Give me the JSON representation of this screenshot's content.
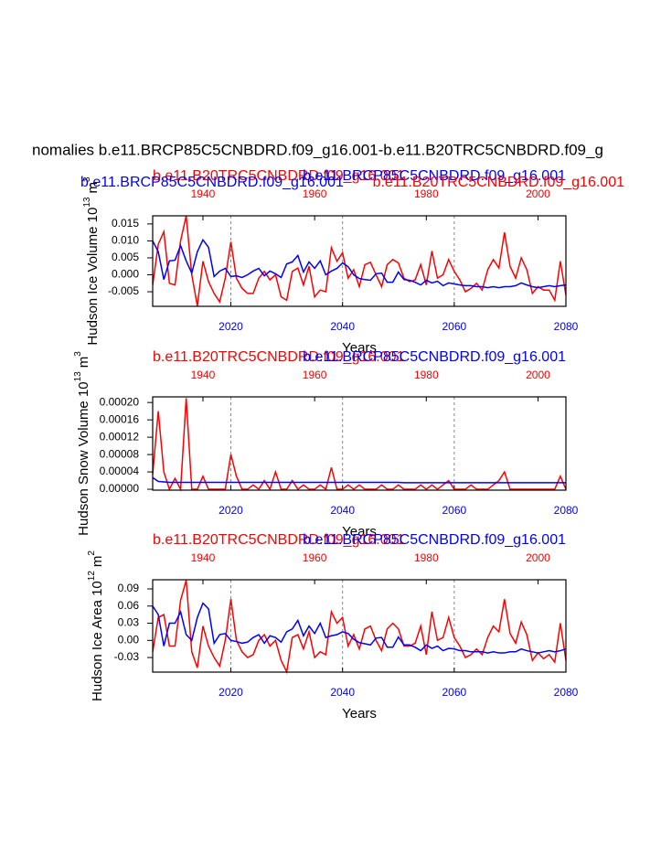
{
  "title": "nomalies b.e11.BRCP85C5CNBDRD.f09_g16.001-b.e11.B20TRC5CNBDRD.f09_g",
  "chart_data": [
    {
      "type": "line",
      "subtitles": [
        {
          "text": "b.e11.BRCP85C5CNBDRD.f09_g16.001",
          "color": "#0000ff"
        },
        {
          "text": "b.e11.B20TRC5CNBDRD.f09_g16.001",
          "color": "#ff0000"
        }
      ],
      "ylabel": {
        "text": "Hudson Ice Volume 10",
        "exp": "13",
        "unit": "m",
        "unit_exp": "3"
      },
      "xlabel": "Years",
      "xlim": [
        2006,
        2080
      ],
      "xticks": [
        2020,
        2040,
        2060,
        2080
      ],
      "xtick_color": "#0000ff",
      "x2lim": [
        1931,
        2005
      ],
      "x2ticks": [
        1940,
        1960,
        1980,
        2000
      ],
      "x2tick_color": "#ff0000",
      "grid": "x",
      "ylim": [
        -0.0093,
        0.0174
      ],
      "yticks": [
        0.015,
        {
          "value": 0.01,
          "label": "0.010"
        },
        0.005,
        {
          "value": 0,
          "label": "0.000"
        },
        -0.005
      ],
      "x": [
        2006,
        2007,
        2008,
        2009,
        2010,
        2011,
        2012,
        2013,
        2014,
        2015,
        2016,
        2017,
        2018,
        2019,
        2020,
        2021,
        2022,
        2023,
        2024,
        2025,
        2026,
        2027,
        2028,
        2029,
        2030,
        2031,
        2032,
        2033,
        2034,
        2035,
        2036,
        2037,
        2038,
        2039,
        2040,
        2041,
        2042,
        2043,
        2044,
        2045,
        2046,
        2047,
        2048,
        2049,
        2050,
        2051,
        2052,
        2053,
        2054,
        2055,
        2056,
        2057,
        2058,
        2059,
        2060,
        2061,
        2062,
        2063,
        2064,
        2065,
        2066,
        2067,
        2068,
        2069,
        2070,
        2071,
        2072,
        2073,
        2074,
        2075,
        2076,
        2077,
        2078,
        2079,
        2080
      ],
      "x2": [
        1931,
        1932,
        1933,
        1934,
        1935,
        1936,
        1937,
        1938,
        1939,
        1940,
        1941,
        1942,
        1943,
        1944,
        1945,
        1946,
        1947,
        1948,
        1949,
        1950,
        1951,
        1952,
        1953,
        1954,
        1955,
        1956,
        1957,
        1958,
        1959,
        1960,
        1961,
        1962,
        1963,
        1964,
        1965,
        1966,
        1967,
        1968,
        1969,
        1970,
        1971,
        1972,
        1973,
        1974,
        1975,
        1976,
        1977,
        1978,
        1979,
        1980,
        1981,
        1982,
        1983,
        1984,
        1985,
        1986,
        1987,
        1988,
        1989,
        1990,
        1991,
        1992,
        1993,
        1994,
        1995,
        1996,
        1997,
        1998,
        1999,
        2000,
        2001,
        2002,
        2003,
        2004,
        2005
      ],
      "series": [
        {
          "name": "b.e11.B20TRC5CNBDRD.f09_g16.001",
          "color": "#ff0000",
          "axis": "x2",
          "values": [
            -0.003,
            0.009,
            0.0127,
            -0.0025,
            -0.003,
            0.01,
            0.0174,
            0,
            -0.0092,
            0.004,
            -0.002,
            -0.0055,
            -0.008,
            -0.001,
            0.0097,
            -0.001,
            -0.004,
            -0.0055,
            -0.0055,
            -0.001,
            0.001,
            -0.0015,
            0,
            -0.0065,
            -0.0075,
            0.001,
            0.002,
            -0.003,
            0.0025,
            -0.0065,
            -0.0045,
            -0.005,
            0.008,
            0.004,
            0.0065,
            -0.001,
            0.0015,
            -0.0035,
            0.003,
            0.0037,
            0,
            -0.0035,
            0.003,
            0.0045,
            0.0035,
            -0.001,
            -0.002,
            -0.0015,
            0.003,
            -0.003,
            0.007,
            -0.001,
            0,
            0.0045,
            0.001,
            -0.0015,
            -0.005,
            -0.004,
            -0.0025,
            -0.0045,
            0.0015,
            0.0045,
            0.002,
            0.0125,
            0.0025,
            -0.001,
            0.005,
            0.0015,
            -0.0055,
            -0.0035,
            -0.0045,
            -0.0045,
            -0.0075,
            0.004,
            -0.006
          ]
        },
        {
          "name": "b.e11.BRCP85C5CNBDRD.f09_g16.001",
          "color": "#0000ff",
          "values": [
            0.01,
            0.0068,
            -0.0014,
            0.0041,
            0.0043,
            0.0086,
            0.0041,
            0.0005,
            0.0068,
            0.0103,
            0.0081,
            -0.0005,
            0.0011,
            0.0019,
            -0.0005,
            -0.0003,
            -0.0008,
            0,
            0.0011,
            0.0019,
            -0.0003,
            0.0011,
            0.0003,
            -0.0008,
            0.0032,
            0.0038,
            0.0057,
            0.0008,
            0.0038,
            0.0019,
            0.0041,
            0,
            0.0011,
            0.0019,
            0.0035,
            0.0024,
            0,
            -0.0011,
            -0.0014,
            -0.0016,
            0.0003,
            0.0005,
            -0.0022,
            -0.0022,
            0.0008,
            -0.0014,
            -0.0016,
            -0.0022,
            -0.003,
            -0.0016,
            -0.0024,
            -0.0019,
            -0.0032,
            -0.0024,
            -0.0027,
            -0.003,
            -0.0032,
            -0.0032,
            -0.0035,
            -0.0035,
            -0.0038,
            -0.0035,
            -0.0038,
            -0.0035,
            -0.0035,
            -0.0032,
            -0.0024,
            -0.003,
            -0.0035,
            -0.0038,
            -0.0035,
            -0.0032,
            -0.0035,
            -0.0032,
            -0.003
          ]
        }
      ]
    },
    {
      "type": "line",
      "ylabel": {
        "text": "Hudson Snow Volume 10",
        "exp": "13",
        "unit": "m",
        "unit_exp": "3"
      },
      "xlabel": "Years",
      "xlim": [
        2006,
        2080
      ],
      "xticks": [
        2020,
        2040,
        2060,
        2080
      ],
      "xtick_color": "#0000ff",
      "x2lim": [
        1931,
        2005
      ],
      "x2ticks": [
        1940,
        1960,
        1980,
        2000
      ],
      "x2tick_color": "#ff0000",
      "grid": "x",
      "ylim": [
        -2e-06,
        0.000213
      ],
      "yticks": [
        {
          "value": 0.0002,
          "label": "0.00020"
        },
        {
          "value": 0.00016,
          "label": "0.00016"
        },
        {
          "value": 0.00012,
          "label": "0.00012"
        },
        {
          "value": 8e-05,
          "label": "0.00008"
        },
        {
          "value": 4e-05,
          "label": "0.00004"
        },
        {
          "value": 0,
          "label": "0.00000"
        }
      ],
      "x": [
        2006,
        2007,
        2008,
        2009,
        2010,
        2011,
        2012,
        2013,
        2014,
        2015,
        2016,
        2017,
        2018,
        2019,
        2020,
        2021,
        2022,
        2023,
        2024,
        2025,
        2026,
        2027,
        2028,
        2029,
        2030,
        2031,
        2032,
        2033,
        2034,
        2035,
        2036,
        2037,
        2038,
        2039,
        2040,
        2041,
        2042,
        2043,
        2044,
        2045,
        2046,
        2047,
        2048,
        2049,
        2050,
        2051,
        2052,
        2053,
        2054,
        2055,
        2056,
        2057,
        2058,
        2059,
        2060,
        2061,
        2062,
        2063,
        2064,
        2065,
        2066,
        2067,
        2068,
        2069,
        2070,
        2071,
        2072,
        2073,
        2074,
        2075,
        2076,
        2077,
        2078,
        2079,
        2080
      ],
      "x2": [
        1931,
        1932,
        1933,
        1934,
        1935,
        1936,
        1937,
        1938,
        1939,
        1940,
        1941,
        1942,
        1943,
        1944,
        1945,
        1946,
        1947,
        1948,
        1949,
        1950,
        1951,
        1952,
        1953,
        1954,
        1955,
        1956,
        1957,
        1958,
        1959,
        1960,
        1961,
        1962,
        1963,
        1964,
        1965,
        1966,
        1967,
        1968,
        1969,
        1970,
        1971,
        1972,
        1973,
        1974,
        1975,
        1976,
        1977,
        1978,
        1979,
        1980,
        1981,
        1982,
        1983,
        1984,
        1985,
        1986,
        1987,
        1988,
        1989,
        1990,
        1991,
        1992,
        1993,
        1994,
        1995,
        1996,
        1997,
        1998,
        1999,
        2000,
        2001,
        2002,
        2003,
        2004,
        2005
      ],
      "series": [
        {
          "name": "b.e11.B20TRC5CNBDRD.f09_g16.001",
          "color": "#ff0000",
          "axis": "x2",
          "values": [
            3.5e-05,
            0.00018,
            4e-05,
            0,
            2.5e-05,
            0,
            0.00021,
            0,
            0,
            3e-05,
            0,
            0,
            0,
            0,
            8e-05,
            3e-05,
            0,
            0,
            1e-05,
            0,
            2e-05,
            0,
            4e-05,
            0,
            0,
            2e-05,
            0,
            1e-05,
            0,
            0,
            1e-05,
            0,
            5e-05,
            0,
            0,
            1e-05,
            0,
            1e-05,
            0,
            0,
            0,
            1e-05,
            0,
            0,
            1e-05,
            0,
            0,
            0,
            1e-05,
            0,
            1e-05,
            0,
            1e-05,
            2e-05,
            0,
            0,
            0,
            1e-05,
            0,
            0,
            0,
            1e-05,
            2e-05,
            4e-05,
            0,
            0,
            0,
            0,
            0,
            0,
            0,
            0,
            0,
            3e-05,
            0
          ]
        },
        {
          "name": "b.e11.BRCP85C5CNBDRD.f09_g16.001",
          "color": "#0000ff",
          "values": [
            2.7e-05,
            1.8e-05,
            1.7e-05,
            1.6e-05,
            1.6e-05,
            1.6e-05,
            1.6e-05,
            1.6e-05,
            1.6e-05,
            1.6e-05,
            1.6e-05,
            1.6e-05,
            1.6e-05,
            1.6e-05,
            1.6e-05,
            1.6e-05,
            1.6e-05,
            1.6e-05,
            1.6e-05,
            1.6e-05,
            1.6e-05,
            1.6e-05,
            1.6e-05,
            1.6e-05,
            1.6e-05,
            1.6e-05,
            1.6e-05,
            1.6e-05,
            1.6e-05,
            1.6e-05,
            1.6e-05,
            1.6e-05,
            1.6e-05,
            1.6e-05,
            1.6e-05,
            1.6e-05,
            1.6e-05,
            1.6e-05,
            1.6e-05,
            1.6e-05,
            1.6e-05,
            1.6e-05,
            1.6e-05,
            1.6e-05,
            1.6e-05,
            1.5e-05,
            1.5e-05,
            1.5e-05,
            1.5e-05,
            1.5e-05,
            1.5e-05,
            1.5e-05,
            1.5e-05,
            1.5e-05,
            1.5e-05,
            1.5e-05,
            1.5e-05,
            1.5e-05,
            1.5e-05,
            1.5e-05,
            1.5e-05,
            1.5e-05,
            1.5e-05,
            1.5e-05,
            1.5e-05,
            1.5e-05,
            1.5e-05,
            1.5e-05,
            1.5e-05,
            1.5e-05,
            1.5e-05,
            1.5e-05,
            1.5e-05,
            1.5e-05,
            1.5e-05
          ]
        }
      ]
    },
    {
      "type": "line",
      "ylabel": {
        "text": "Hudson Ice Area 10",
        "exp": "12",
        "unit": "m",
        "unit_exp": "2"
      },
      "xlabel": "Years",
      "xlim": [
        2006,
        2080
      ],
      "xticks": [
        2020,
        2040,
        2060,
        2080
      ],
      "xtick_color": "#0000ff",
      "x2lim": [
        1931,
        2005
      ],
      "x2ticks": [
        1940,
        1960,
        1980,
        2000
      ],
      "x2tick_color": "#ff0000",
      "grid": "x",
      "ylim": [
        -0.0555,
        0.106
      ],
      "yticks": [
        0.09,
        0.06,
        0.03,
        {
          "value": 0,
          "label": "0.00"
        },
        -0.03
      ],
      "x": [
        2006,
        2007,
        2008,
        2009,
        2010,
        2011,
        2012,
        2013,
        2014,
        2015,
        2016,
        2017,
        2018,
        2019,
        2020,
        2021,
        2022,
        2023,
        2024,
        2025,
        2026,
        2027,
        2028,
        2029,
        2030,
        2031,
        2032,
        2033,
        2034,
        2035,
        2036,
        2037,
        2038,
        2039,
        2040,
        2041,
        2042,
        2043,
        2044,
        2045,
        2046,
        2047,
        2048,
        2049,
        2050,
        2051,
        2052,
        2053,
        2054,
        2055,
        2056,
        2057,
        2058,
        2059,
        2060,
        2061,
        2062,
        2063,
        2064,
        2065,
        2066,
        2067,
        2068,
        2069,
        2070,
        2071,
        2072,
        2073,
        2074,
        2075,
        2076,
        2077,
        2078,
        2079,
        2080
      ],
      "x2": [
        1931,
        1932,
        1933,
        1934,
        1935,
        1936,
        1937,
        1938,
        1939,
        1940,
        1941,
        1942,
        1943,
        1944,
        1945,
        1946,
        1947,
        1948,
        1949,
        1950,
        1951,
        1952,
        1953,
        1954,
        1955,
        1956,
        1957,
        1958,
        1959,
        1960,
        1961,
        1962,
        1963,
        1964,
        1965,
        1966,
        1967,
        1968,
        1969,
        1970,
        1971,
        1972,
        1973,
        1974,
        1975,
        1976,
        1977,
        1978,
        1979,
        1980,
        1981,
        1982,
        1983,
        1984,
        1985,
        1986,
        1987,
        1988,
        1989,
        1990,
        1991,
        1992,
        1993,
        1994,
        1995,
        1996,
        1997,
        1998,
        1999,
        2000,
        2001,
        2002,
        2003,
        2004,
        2005
      ],
      "series": [
        {
          "name": "b.e11.B20TRC5CNBDRD.f09_g16.001",
          "color": "#ff0000",
          "axis": "x2",
          "values": [
            -0.02,
            0.04,
            0.045,
            -0.01,
            -0.01,
            0.07,
            0.105,
            -0.02,
            -0.048,
            0.025,
            -0.01,
            -0.03,
            -0.045,
            0,
            0.072,
            0,
            -0.02,
            -0.03,
            -0.025,
            0,
            0.01,
            -0.01,
            0,
            -0.035,
            -0.055,
            0.005,
            0.01,
            -0.015,
            0.015,
            -0.03,
            -0.02,
            -0.025,
            0.05,
            0.03,
            0.04,
            -0.01,
            0.01,
            -0.015,
            0.02,
            0.025,
            0,
            -0.018,
            0.02,
            0.03,
            0.02,
            -0.01,
            -0.01,
            -0.005,
            0.025,
            -0.025,
            0.05,
            0,
            0.005,
            0.04,
            0.005,
            -0.01,
            -0.03,
            -0.025,
            -0.015,
            -0.025,
            0.005,
            0.025,
            0.015,
            0.072,
            0.012,
            -0.005,
            0.032,
            0.01,
            -0.035,
            -0.022,
            -0.032,
            -0.025,
            -0.038,
            0.03,
            -0.035
          ]
        },
        {
          "name": "b.e11.BRCP85C5CNBDRD.f09_g16.001",
          "color": "#0000ff",
          "values": [
            0.06,
            0.045,
            -0.01,
            0.03,
            0.03,
            0.05,
            0.01,
            0,
            0.04,
            0.065,
            0.055,
            -0.005,
            0.01,
            0.012,
            0,
            -0.002,
            -0.005,
            -0.003,
            0.005,
            0.01,
            -0.005,
            0.008,
            0.005,
            -0.003,
            0.015,
            0.02,
            0.035,
            0.008,
            0.025,
            0.012,
            0.03,
            0.005,
            0.008,
            0.01,
            0.015,
            0.012,
            0.002,
            -0.004,
            -0.006,
            -0.008,
            0.004,
            0.005,
            -0.012,
            -0.012,
            0.006,
            -0.008,
            -0.008,
            -0.012,
            -0.018,
            -0.008,
            -0.014,
            -0.01,
            -0.018,
            -0.014,
            -0.015,
            -0.018,
            -0.018,
            -0.02,
            -0.02,
            -0.02,
            -0.022,
            -0.02,
            -0.022,
            -0.022,
            -0.02,
            -0.02,
            -0.015,
            -0.018,
            -0.02,
            -0.022,
            -0.02,
            -0.018,
            -0.02,
            -0.018,
            -0.015
          ]
        }
      ]
    }
  ]
}
